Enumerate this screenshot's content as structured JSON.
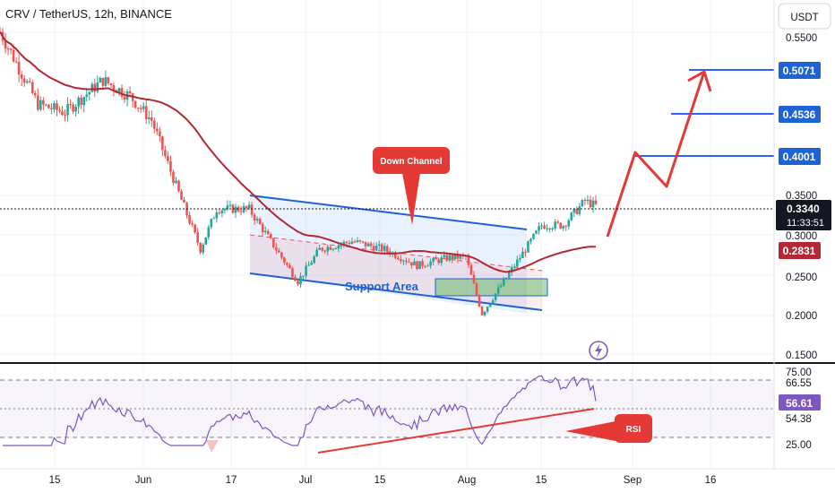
{
  "header": {
    "title": "CRV / TetherUS, 12h, BINANCE",
    "currency": "USDT"
  },
  "colors": {
    "up": "#26a69a",
    "down": "#ef5350",
    "ma": "#b22833",
    "accent": "#2962ff",
    "channel": "#1e63d6",
    "annotation": "#e53935",
    "rsi": "#7e57c2",
    "grid": "#f0f3fa"
  },
  "icons": {
    "lightning": "lightning-icon"
  },
  "annotations": {
    "down_channel": "Down Channel",
    "support_area": "Support Area",
    "rsi": "RSI"
  },
  "price_axis": {
    "ticks": [
      "0.5500",
      "0.3500",
      "0.3000",
      "0.2500",
      "0.2000",
      "0.1500"
    ],
    "tags": {
      "t1": "0.5071",
      "t2": "0.4536",
      "t3": "0.4001",
      "last": "0.3340",
      "countdown": "11:33:51",
      "ma": "0.2831"
    }
  },
  "rsi_axis": {
    "ticks": [
      "75.00",
      "25.00"
    ],
    "tags": {
      "t1": "66.55",
      "t2": "56.61",
      "t3": "54.38"
    }
  },
  "time_axis": [
    "15",
    "Jun",
    "17",
    "Jul",
    "15",
    "Aug",
    "15",
    "Sep",
    "16"
  ],
  "chart_data": {
    "type": "candlestick",
    "symbol": "CRV / TetherUS",
    "interval": "12h",
    "exchange": "BINANCE",
    "x_labels": [
      "15",
      "Jun",
      "17",
      "Jul",
      "15",
      "Aug",
      "15",
      "Sep",
      "16"
    ],
    "y_range": [
      0.15,
      0.58
    ],
    "key_points": [
      {
        "x": "May 8",
        "close": 0.55
      },
      {
        "x": "May 15",
        "close": 0.46
      },
      {
        "x": "May 20",
        "close": 0.45
      },
      {
        "x": "May 27",
        "close": 0.49
      },
      {
        "x": "Jun 1",
        "close": 0.47
      },
      {
        "x": "Jun 5",
        "close": 0.44
      },
      {
        "x": "Jun 10",
        "close": 0.35
      },
      {
        "x": "Jun 14",
        "close": 0.28
      },
      {
        "x": "Jun 17",
        "close": 0.33
      },
      {
        "x": "Jun 23",
        "close": 0.33
      },
      {
        "x": "Jun 28",
        "close": 0.28
      },
      {
        "x": "Jul 2",
        "close": 0.24
      },
      {
        "x": "Jul 6",
        "close": 0.28
      },
      {
        "x": "Jul 12",
        "close": 0.29
      },
      {
        "x": "Jul 18",
        "close": 0.28
      },
      {
        "x": "Jul 24",
        "close": 0.26
      },
      {
        "x": "Jul 30",
        "close": 0.27
      },
      {
        "x": "Aug 2",
        "close": 0.27
      },
      {
        "x": "Aug 5",
        "close": 0.2
      },
      {
        "x": "Aug 9",
        "close": 0.24
      },
      {
        "x": "Aug 12",
        "close": 0.27
      },
      {
        "x": "Aug 16",
        "close": 0.31
      },
      {
        "x": "Aug 20",
        "close": 0.31
      },
      {
        "x": "Aug 24",
        "close": 0.34
      },
      {
        "x": "Aug 26",
        "close": 0.334
      }
    ],
    "moving_average": {
      "last": 0.2831
    },
    "last_price": 0.334,
    "targets": [
      0.4001,
      0.4536,
      0.5071
    ],
    "rsi": {
      "levels": [
        75,
        25
      ],
      "values": {
        "current": 56.61,
        "lines": [
          66.55,
          54.38
        ]
      }
    }
  }
}
